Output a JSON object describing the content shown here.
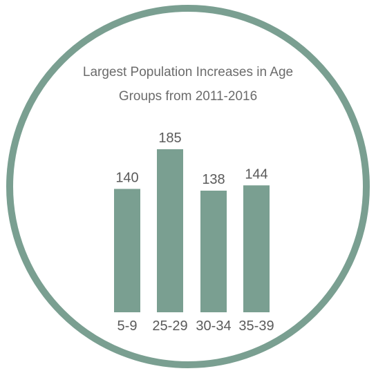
{
  "colors": {
    "ring": "#7a9f91",
    "bar": "#7a9f91",
    "background": "#ffffff",
    "text": "#5a5a5a"
  },
  "chart_data": {
    "type": "bar",
    "title_lines": [
      "Largest Population Increases in Age",
      "Groups from 2011-2016"
    ],
    "categories": [
      "5-9",
      "25-29",
      "30-34",
      "35-39"
    ],
    "values": [
      140,
      185,
      138,
      144
    ],
    "data_labels": [
      "140",
      "185",
      "138",
      "144"
    ],
    "xlabel": "",
    "ylabel": "",
    "ylim": [
      0,
      200
    ],
    "grid": false,
    "legend": "none"
  }
}
